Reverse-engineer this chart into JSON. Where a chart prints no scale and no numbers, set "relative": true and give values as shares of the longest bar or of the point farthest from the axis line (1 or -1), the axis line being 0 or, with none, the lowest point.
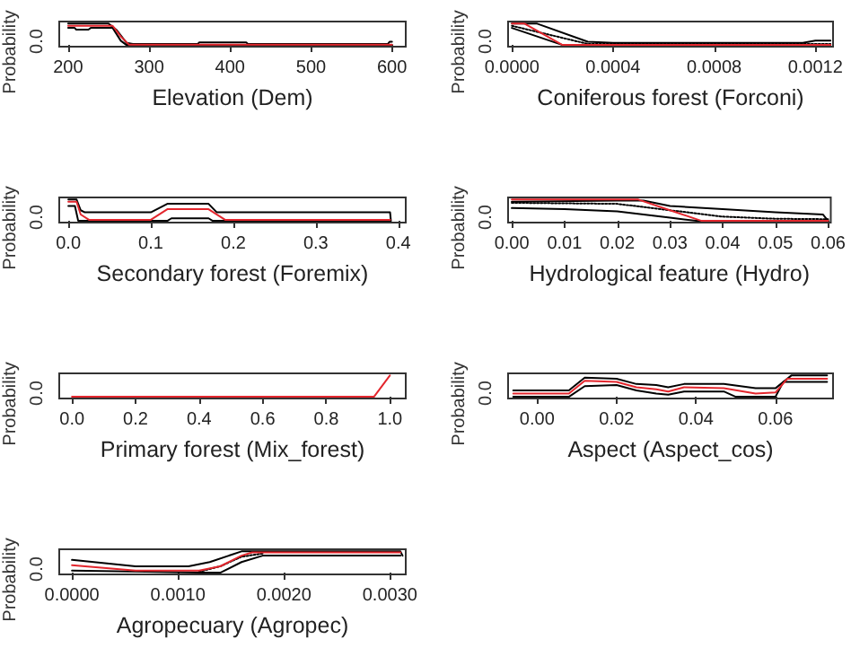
{
  "chart_data": [
    {
      "type": "line",
      "relative": true,
      "xlabel": "Elevation (Dem)",
      "ylabel": "Probability",
      "annotations": [
        "0.0"
      ],
      "xlim": [
        189,
        617
      ],
      "xticks": [
        200,
        300,
        400,
        500,
        600
      ],
      "grid": false,
      "marker": "none",
      "series": [
        {
          "color": "#000000",
          "x": [
            200,
            250,
            260,
            272,
            280,
            360,
            362,
            420,
            422,
            595,
            597,
            600
          ],
          "values": [
            1,
            1,
            0.7,
            0.1,
            0.05,
            0.05,
            0.12,
            0.12,
            0.05,
            0.05,
            0.15,
            0.15
          ]
        },
        {
          "color": "#000000",
          "x": [
            200,
            208,
            210,
            225,
            228,
            255,
            265,
            272,
            600
          ],
          "values": [
            0.8,
            0.8,
            0.72,
            0.72,
            0.8,
            0.8,
            0.2,
            0,
            0
          ]
        },
        {
          "color": "#e3262d",
          "x": [
            200,
            255,
            265,
            275,
            600
          ],
          "values": [
            0.9,
            0.9,
            0.4,
            0.02,
            0.02
          ]
        }
      ]
    },
    {
      "type": "line",
      "relative": true,
      "xlabel": "Coniferous forest (Forconi)",
      "ylabel": "Probability",
      "annotations": [
        "0.0"
      ],
      "xlim": [
        -1.5e-05,
        0.00127
      ],
      "xticks": [
        {
          "value": 0,
          "label": "0.0000"
        },
        0.0004,
        0.0008,
        0.0012
      ],
      "grid": false,
      "marker": "none",
      "series": [
        {
          "color": "#000000",
          "x": [
            0,
            0.0001,
            0.0003,
            0.0004,
            0.00115,
            0.0012,
            0.00126
          ],
          "values": [
            1,
            1,
            0.15,
            0.1,
            0.1,
            0.2,
            0.2
          ]
        },
        {
          "color": "#000000",
          "x": [
            0,
            0.0002,
            0.00126
          ],
          "values": [
            0.8,
            0,
            0
          ]
        },
        {
          "color": "#000000",
          "line_style": "dotted",
          "x": [
            0,
            0.0003,
            0.00126
          ],
          "values": [
            0.9,
            0.05,
            0.05
          ]
        },
        {
          "color": "#e3262d",
          "x": [
            0,
            5e-05,
            0.0002,
            0.00126
          ],
          "values": [
            1,
            1,
            0,
            0
          ]
        }
      ]
    },
    {
      "type": "line",
      "relative": true,
      "xlabel": "Secondary forest (Foremix)",
      "ylabel": "Probability",
      "annotations": [
        "0.0"
      ],
      "xlim": [
        -0.011,
        0.409
      ],
      "xticks": [
        {
          "value": 0,
          "label": "0.0"
        },
        0.1,
        0.2,
        0.3,
        0.4
      ],
      "grid": false,
      "marker": "none",
      "series": [
        {
          "color": "#000000",
          "x": [
            0,
            0.01,
            0.015,
            0.02,
            0.1,
            0.12,
            0.17,
            0.18,
            0.39,
            0.391
          ],
          "values": [
            1,
            1,
            0.5,
            0.4,
            0.4,
            0.8,
            0.8,
            0.4,
            0.4,
            0
          ]
        },
        {
          "color": "#000000",
          "x": [
            0,
            0.008,
            0.012,
            0.12,
            0.125,
            0.17,
            0.175,
            0.39
          ],
          "values": [
            0.7,
            0.7,
            0,
            0,
            0.12,
            0.12,
            0,
            0
          ]
        },
        {
          "color": "#e3262d",
          "x": [
            0,
            0.01,
            0.015,
            0.025,
            0.1,
            0.12,
            0.17,
            0.19,
            0.39
          ],
          "values": [
            0.9,
            0.9,
            0.3,
            0.05,
            0.05,
            0.55,
            0.55,
            0.05,
            0.05
          ]
        }
      ]
    },
    {
      "type": "line",
      "relative": true,
      "xlabel": "Hydrological feature (Hydro)",
      "ylabel": "Probability",
      "annotations": [
        "0.0"
      ],
      "xlim": [
        -0.0007,
        0.0605
      ],
      "xticks": [
        {
          "value": 0,
          "label": "0.00"
        },
        0.01,
        0.02,
        0.03,
        0.04,
        0.05,
        0.06
      ],
      "grid": false,
      "marker": "none",
      "series": [
        {
          "color": "#000000",
          "x": [
            0,
            0.02,
            0.025,
            0.03,
            0.04,
            0.05,
            0.059,
            0.06
          ],
          "values": [
            0.9,
            0.95,
            0.95,
            0.7,
            0.55,
            0.4,
            0.3,
            0
          ]
        },
        {
          "color": "#000000",
          "x": [
            0,
            0.01,
            0.02,
            0.03,
            0.035,
            0.06
          ],
          "values": [
            0.6,
            0.55,
            0.45,
            0.15,
            0,
            0
          ]
        },
        {
          "color": "#000000",
          "line_style": "dotted",
          "x": [
            0,
            0.02,
            0.03,
            0.04,
            0.05,
            0.06
          ],
          "values": [
            0.85,
            0.8,
            0.5,
            0.2,
            0.1,
            0.08
          ]
        },
        {
          "color": "#e3262d",
          "x": [
            0,
            0.024,
            0.03,
            0.036,
            0.06
          ],
          "values": [
            1,
            1,
            0.5,
            0,
            0
          ]
        }
      ]
    },
    {
      "type": "line",
      "relative": true,
      "xlabel": "Primary forest (Mix_forest)",
      "ylabel": "Probability",
      "annotations": [
        "0.0"
      ],
      "xlim": [
        -0.04,
        1.05
      ],
      "xticks": [
        {
          "value": 0,
          "label": "0.0"
        },
        0.2,
        0.4,
        0.6,
        0.8,
        {
          "value": 1,
          "label": "1.0"
        }
      ],
      "grid": false,
      "marker": "none",
      "series": [
        {
          "color": "#e3262d",
          "x": [
            0,
            0.95,
            1
          ],
          "values": [
            0,
            0,
            1
          ]
        }
      ]
    },
    {
      "type": "line",
      "relative": true,
      "xlabel": "Aspect (Aspect_cos)",
      "ylabel": "Probability",
      "annotations": [
        "0.0"
      ],
      "xlim": [
        -0.0073,
        0.0745
      ],
      "xticks": [
        {
          "value": 0,
          "label": "0.00"
        },
        0.02,
        0.04,
        0.06
      ],
      "grid": false,
      "marker": "none",
      "series": [
        {
          "color": "#000000",
          "x": [
            -0.006,
            0.008,
            0.012,
            0.02,
            0.025,
            0.03,
            0.033,
            0.037,
            0.047,
            0.055,
            0.06,
            0.064,
            0.073
          ],
          "values": [
            0.3,
            0.3,
            0.9,
            0.85,
            0.6,
            0.55,
            0.45,
            0.6,
            0.6,
            0.4,
            0.4,
            1,
            1
          ]
        },
        {
          "color": "#000000",
          "x": [
            -0.006,
            0.008,
            0.012,
            0.02,
            0.025,
            0.03,
            0.033,
            0.037,
            0.047,
            0.05,
            0.06,
            0.062,
            0.073
          ],
          "values": [
            0,
            0,
            0.5,
            0.55,
            0.3,
            0.15,
            0.1,
            0.25,
            0.25,
            0,
            0,
            0.7,
            0.7
          ]
        },
        {
          "color": "#e3262d",
          "x": [
            -0.006,
            0.008,
            0.012,
            0.02,
            0.025,
            0.03,
            0.033,
            0.037,
            0.047,
            0.055,
            0.06,
            0.063,
            0.073
          ],
          "values": [
            0.15,
            0.15,
            0.75,
            0.7,
            0.45,
            0.35,
            0.25,
            0.45,
            0.4,
            0.15,
            0.2,
            0.85,
            0.85
          ]
        }
      ]
    },
    {
      "type": "line",
      "relative": true,
      "xlabel": "Agropecuary (Agropec)",
      "ylabel": "Probability",
      "annotations": [
        "0.0"
      ],
      "xlim": [
        -0.00012,
        0.00315
      ],
      "xticks": [
        {
          "value": 0,
          "label": "0.0000"
        },
        {
          "value": 0.001,
          "label": "0.0010"
        },
        {
          "value": 0.002,
          "label": "0.0020"
        },
        {
          "value": 0.003,
          "label": "0.0030"
        }
      ],
      "grid": false,
      "marker": "none",
      "series": [
        {
          "color": "#000000",
          "x": [
            0,
            0.0006,
            0.0011,
            0.0013,
            0.0016,
            0.0031,
            0.00312
          ],
          "values": [
            0.6,
            0.3,
            0.3,
            0.5,
            1,
            1,
            0.8
          ]
        },
        {
          "color": "#000000",
          "x": [
            0,
            0.0007,
            0.0012,
            0.0014,
            0.0016,
            0.0018,
            0.0031
          ],
          "values": [
            0.1,
            0.05,
            0,
            0,
            0.5,
            0.8,
            0.8
          ]
        },
        {
          "color": "#000000",
          "line_style": "dotted",
          "x": [
            0.0012,
            0.0014,
            0.0016,
            0.0018
          ],
          "values": [
            0.05,
            0.3,
            0.75,
            0.9
          ]
        },
        {
          "color": "#e3262d",
          "x": [
            0,
            0.0006,
            0.0012,
            0.0014,
            0.0016,
            0.0017,
            0.0031
          ],
          "values": [
            0.35,
            0.1,
            0.1,
            0.3,
            0.8,
            0.95,
            0.95
          ]
        }
      ]
    }
  ]
}
